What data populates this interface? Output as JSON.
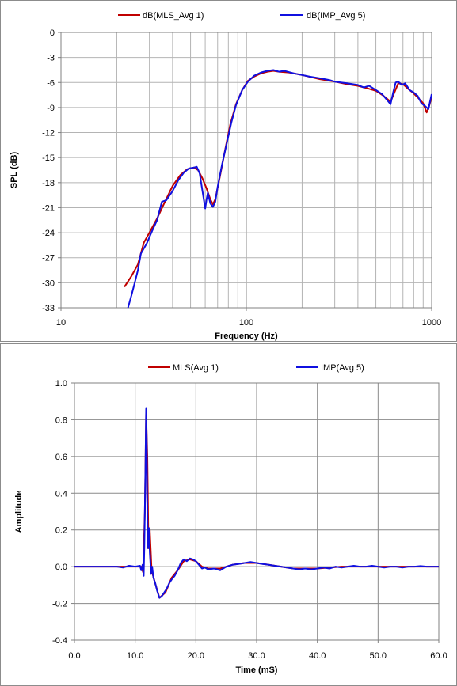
{
  "chart_data": [
    {
      "type": "line",
      "title": "",
      "xlabel": "Frequency (Hz)",
      "ylabel": "SPL (dB)",
      "xscale": "log",
      "xlim": [
        10,
        1000
      ],
      "ylim": [
        -33,
        0
      ],
      "xticks": [
        "10",
        "100",
        "1000"
      ],
      "yticks": [
        "0",
        "-3",
        "-6",
        "-9",
        "-12",
        "-15",
        "-18",
        "-21",
        "-24",
        "-27",
        "-30",
        "-33"
      ],
      "grid": true,
      "legend_position": "top",
      "series": [
        {
          "name": "dB(MLS_Avg 1)",
          "color": "#c00000",
          "points": [
            [
              22,
              -30.5
            ],
            [
              24,
              -29.2
            ],
            [
              26,
              -27.8
            ],
            [
              28,
              -25.2
            ],
            [
              30,
              -24.0
            ],
            [
              33,
              -22.3
            ],
            [
              36,
              -20.5
            ],
            [
              40,
              -18.4
            ],
            [
              44,
              -17.1
            ],
            [
              48,
              -16.4
            ],
            [
              52,
              -16.2
            ],
            [
              55,
              -16.5
            ],
            [
              58,
              -17.5
            ],
            [
              61,
              -18.7
            ],
            [
              64,
              -20.0
            ],
            [
              66,
              -20.6
            ],
            [
              68,
              -20.0
            ],
            [
              72,
              -17.3
            ],
            [
              77,
              -14.0
            ],
            [
              82,
              -11.0
            ],
            [
              88,
              -8.6
            ],
            [
              95,
              -6.9
            ],
            [
              102,
              -5.8
            ],
            [
              110,
              -5.3
            ],
            [
              120,
              -4.9
            ],
            [
              130,
              -4.7
            ],
            [
              140,
              -4.6
            ],
            [
              150,
              -4.7
            ],
            [
              170,
              -4.8
            ],
            [
              200,
              -5.1
            ],
            [
              250,
              -5.6
            ],
            [
              300,
              -5.9
            ],
            [
              350,
              -6.2
            ],
            [
              400,
              -6.4
            ],
            [
              450,
              -6.7
            ],
            [
              500,
              -7.0
            ],
            [
              550,
              -7.6
            ],
            [
              600,
              -8.3
            ],
            [
              630,
              -7.2
            ],
            [
              660,
              -6.1
            ],
            [
              700,
              -6.2
            ],
            [
              750,
              -6.8
            ],
            [
              800,
              -7.3
            ],
            [
              850,
              -7.9
            ],
            [
              900,
              -8.5
            ],
            [
              940,
              -9.6
            ],
            [
              970,
              -8.8
            ],
            [
              1000,
              -7.7
            ]
          ]
        },
        {
          "name": "dB(IMP_Avg 5)",
          "color": "#1010e0",
          "points": [
            [
              23,
              -33.0
            ],
            [
              24,
              -31.5
            ],
            [
              25,
              -30.0
            ],
            [
              26,
              -28.5
            ],
            [
              27,
              -26.5
            ],
            [
              29,
              -25.3
            ],
            [
              31,
              -23.8
            ],
            [
              33,
              -22.5
            ],
            [
              35,
              -20.3
            ],
            [
              37,
              -20.1
            ],
            [
              40,
              -19.0
            ],
            [
              43,
              -17.7
            ],
            [
              46,
              -16.8
            ],
            [
              49,
              -16.3
            ],
            [
              52,
              -16.2
            ],
            [
              54,
              -16.1
            ],
            [
              56,
              -16.9
            ],
            [
              58,
              -19.0
            ],
            [
              60,
              -21.1
            ],
            [
              61,
              -20.0
            ],
            [
              62,
              -19.2
            ],
            [
              64,
              -20.5
            ],
            [
              66,
              -20.9
            ],
            [
              68,
              -20.3
            ],
            [
              70,
              -18.5
            ],
            [
              74,
              -15.8
            ],
            [
              78,
              -13.5
            ],
            [
              83,
              -10.8
            ],
            [
              88,
              -8.7
            ],
            [
              95,
              -6.9
            ],
            [
              102,
              -5.9
            ],
            [
              110,
              -5.2
            ],
            [
              120,
              -4.8
            ],
            [
              130,
              -4.6
            ],
            [
              140,
              -4.5
            ],
            [
              150,
              -4.7
            ],
            [
              160,
              -4.6
            ],
            [
              180,
              -4.9
            ],
            [
              200,
              -5.1
            ],
            [
              220,
              -5.3
            ],
            [
              250,
              -5.5
            ],
            [
              280,
              -5.7
            ],
            [
              300,
              -5.9
            ],
            [
              350,
              -6.1
            ],
            [
              400,
              -6.3
            ],
            [
              430,
              -6.6
            ],
            [
              460,
              -6.4
            ],
            [
              500,
              -6.9
            ],
            [
              540,
              -7.4
            ],
            [
              580,
              -8.2
            ],
            [
              600,
              -8.6
            ],
            [
              620,
              -7.2
            ],
            [
              640,
              -6.0
            ],
            [
              660,
              -5.9
            ],
            [
              690,
              -6.3
            ],
            [
              720,
              -6.1
            ],
            [
              760,
              -6.9
            ],
            [
              800,
              -7.2
            ],
            [
              840,
              -7.6
            ],
            [
              880,
              -8.5
            ],
            [
              920,
              -8.8
            ],
            [
              960,
              -9.2
            ],
            [
              980,
              -8.3
            ],
            [
              1000,
              -7.4
            ]
          ]
        }
      ]
    },
    {
      "type": "line",
      "title": "",
      "xlabel": "Time (mS)",
      "ylabel": "Amplitude",
      "xlim": [
        0,
        60
      ],
      "ylim": [
        -0.4,
        1.0
      ],
      "xticks": [
        "0.0",
        "10.0",
        "20.0",
        "30.0",
        "40.0",
        "50.0",
        "60.0"
      ],
      "yticks": [
        "1.0",
        "0.8",
        "0.6",
        "0.4",
        "0.2",
        "0.0",
        "-0.2",
        "-0.4"
      ],
      "grid": true,
      "legend_position": "top",
      "series": [
        {
          "name": "MLS(Avg 1)",
          "color": "#c00000",
          "points": [
            [
              0,
              0
            ],
            [
              8,
              0
            ],
            [
              10,
              0
            ],
            [
              11,
              0.0
            ],
            [
              11.3,
              -0.03
            ],
            [
              11.6,
              0.3
            ],
            [
              11.8,
              0.84
            ],
            [
              12.0,
              0.6
            ],
            [
              12.2,
              0.1
            ],
            [
              12.4,
              0.2
            ],
            [
              12.7,
              -0.02
            ],
            [
              13.2,
              -0.08
            ],
            [
              14.0,
              -0.17
            ],
            [
              15.0,
              -0.14
            ],
            [
              16.0,
              -0.06
            ],
            [
              17.0,
              -0.02
            ],
            [
              18.0,
              0.03
            ],
            [
              19.0,
              0.04
            ],
            [
              20.0,
              0.03
            ],
            [
              21.0,
              0.0
            ],
            [
              22.0,
              -0.01
            ],
            [
              24.0,
              -0.01
            ],
            [
              26.0,
              0.01
            ],
            [
              28.0,
              0.02
            ],
            [
              30.0,
              0.02
            ],
            [
              32.0,
              0.01
            ],
            [
              34.0,
              0.0
            ],
            [
              36.0,
              -0.01
            ],
            [
              38.0,
              -0.01
            ],
            [
              40.0,
              -0.01
            ],
            [
              44.0,
              0.0
            ],
            [
              48.0,
              0.0
            ],
            [
              52.0,
              0.0
            ],
            [
              56.0,
              0.0
            ],
            [
              60.0,
              0.0
            ]
          ]
        },
        {
          "name": "IMP(Avg 5)",
          "color": "#1010e0",
          "points": [
            [
              0,
              0
            ],
            [
              7,
              0
            ],
            [
              8,
              -0.005
            ],
            [
              9,
              0.005
            ],
            [
              10,
              0
            ],
            [
              10.8,
              0.005
            ],
            [
              11.0,
              -0.02
            ],
            [
              11.2,
              0.01
            ],
            [
              11.4,
              -0.05
            ],
            [
              11.5,
              0.1
            ],
            [
              11.7,
              0.55
            ],
            [
              11.8,
              0.86
            ],
            [
              11.9,
              0.7
            ],
            [
              12.0,
              0.3
            ],
            [
              12.1,
              0.1
            ],
            [
              12.2,
              0.2
            ],
            [
              12.3,
              0.21
            ],
            [
              12.4,
              0.08
            ],
            [
              12.5,
              0.03
            ],
            [
              12.6,
              -0.04
            ],
            [
              12.8,
              0.0
            ],
            [
              13.0,
              -0.06
            ],
            [
              13.3,
              -0.09
            ],
            [
              13.6,
              -0.13
            ],
            [
              14.0,
              -0.17
            ],
            [
              14.4,
              -0.16
            ],
            [
              14.8,
              -0.14
            ],
            [
              15.2,
              -0.12
            ],
            [
              15.6,
              -0.09
            ],
            [
              16.0,
              -0.07
            ],
            [
              16.5,
              -0.05
            ],
            [
              17.0,
              -0.02
            ],
            [
              17.5,
              0.02
            ],
            [
              18.0,
              0.04
            ],
            [
              18.5,
              0.03
            ],
            [
              19.0,
              0.045
            ],
            [
              19.5,
              0.04
            ],
            [
              20.0,
              0.03
            ],
            [
              20.5,
              0.01
            ],
            [
              21.0,
              -0.01
            ],
            [
              21.5,
              -0.005
            ],
            [
              22.0,
              -0.015
            ],
            [
              23.0,
              -0.01
            ],
            [
              24.0,
              -0.02
            ],
            [
              25.0,
              0.0
            ],
            [
              26.0,
              0.01
            ],
            [
              27.0,
              0.015
            ],
            [
              28.0,
              0.02
            ],
            [
              29.0,
              0.025
            ],
            [
              30.0,
              0.02
            ],
            [
              31.0,
              0.015
            ],
            [
              32.0,
              0.01
            ],
            [
              33.0,
              0.005
            ],
            [
              34.0,
              0.0
            ],
            [
              35.0,
              -0.005
            ],
            [
              36.0,
              -0.01
            ],
            [
              37.0,
              -0.015
            ],
            [
              38.0,
              -0.01
            ],
            [
              39.0,
              -0.015
            ],
            [
              40.0,
              -0.01
            ],
            [
              41.0,
              -0.005
            ],
            [
              42.0,
              -0.01
            ],
            [
              43.0,
              0.0
            ],
            [
              44.0,
              -0.005
            ],
            [
              45.0,
              0.0
            ],
            [
              46.0,
              0.005
            ],
            [
              47.0,
              0.0
            ],
            [
              48.0,
              0.0
            ],
            [
              49.0,
              0.005
            ],
            [
              50.0,
              0.0
            ],
            [
              51.0,
              -0.005
            ],
            [
              52.0,
              0.0
            ],
            [
              53.0,
              0.0
            ],
            [
              54.0,
              -0.005
            ],
            [
              55.0,
              0.0
            ],
            [
              56.0,
              0.0
            ],
            [
              57.0,
              0.003
            ],
            [
              58.0,
              0.0
            ],
            [
              59.0,
              0.0
            ],
            [
              60.0,
              0.0
            ]
          ]
        }
      ]
    }
  ]
}
